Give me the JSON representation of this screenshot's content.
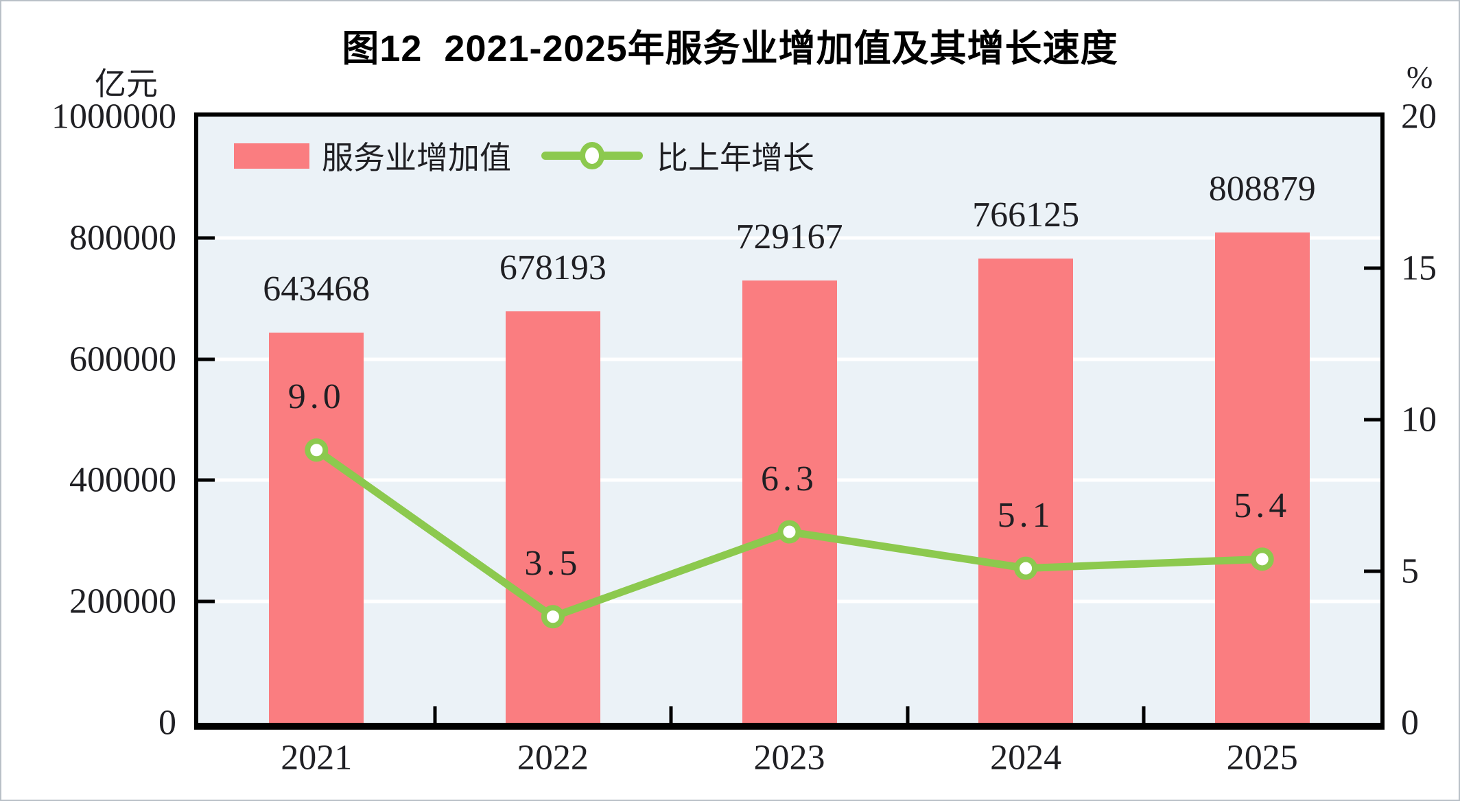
{
  "title": "图12  2021-2025年服务业增加值及其增长速度",
  "left_axis": {
    "unit": "亿元",
    "ticks": [
      "1000000",
      "800000",
      "600000",
      "400000",
      "200000",
      "0"
    ]
  },
  "right_axis": {
    "unit": "%",
    "ticks": [
      "20",
      "15",
      "10",
      "5",
      "0"
    ]
  },
  "legend": {
    "items": [
      {
        "label": "服务业增加值",
        "swatch": "bar"
      },
      {
        "label": "比上年增长",
        "swatch": "line"
      }
    ]
  },
  "chart_data": {
    "type": "bar",
    "title": "图12  2021-2025年服务业增加值及其增长速度",
    "categories": [
      "2021",
      "2022",
      "2023",
      "2024",
      "2025"
    ],
    "series": [
      {
        "name": "服务业增加值",
        "type": "bar",
        "y_axis": "left",
        "values": [
          643468,
          678193,
          729167,
          766125,
          808879
        ],
        "labels": [
          "643468",
          "678193",
          "729167",
          "766125",
          "808879"
        ]
      },
      {
        "name": "比上年增长",
        "type": "line",
        "y_axis": "right",
        "values": [
          9.0,
          3.5,
          6.3,
          5.1,
          5.4
        ],
        "labels": [
          "9.0",
          "3.5",
          "6.3",
          "5.1",
          "5.4"
        ]
      }
    ],
    "xlabel": "",
    "ylabel_left": "亿元",
    "ylabel_right": "%",
    "ylim_left": [
      0,
      1000000
    ],
    "ylim_right": [
      0,
      20
    ],
    "grid": true,
    "legend_position": "top-left-inside"
  },
  "colors": {
    "bar": "#fa7d80",
    "line": "#8cc94e",
    "marker_fill": "#ffffff",
    "plot_bg": "#ebf2f7",
    "grid": "#ffffff",
    "axis": "#000000",
    "text": "#1f1f23"
  }
}
